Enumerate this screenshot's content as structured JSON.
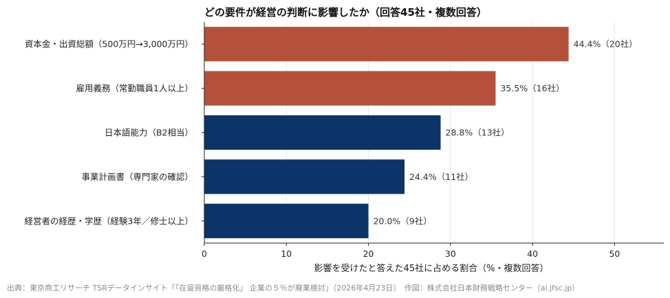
{
  "chart_data": {
    "type": "bar",
    "orientation": "horizontal",
    "title": "どの要件が経営の判断に影響したか（回答45社・複数回答）",
    "xlabel": "影響を受けたと答えた45社に占める割合（%・複数回答）",
    "xlim": [
      0,
      56
    ],
    "xticks": [
      "0",
      "10",
      "20",
      "30",
      "40",
      "50"
    ],
    "grid": "vertical",
    "categories": [
      "資本金・出資総額（500万円→3,000万円）",
      "雇用義務（常勤職員1人以上）",
      "日本語能力（B2相当）",
      "事業計画書（専門家の確認）",
      "経営者の経歴・学歴（経験3年／修士以上）"
    ],
    "values": [
      44.4,
      35.5,
      28.8,
      24.4,
      20.0
    ],
    "data_labels": [
      "44.4%（20社）",
      "35.5%（16社）",
      "28.8%（13社）",
      "24.4%（11社）",
      "20.0%（9社）"
    ],
    "colors": [
      "#b5513a",
      "#b5513a",
      "#0d3468",
      "#0d3468",
      "#0d3468"
    ]
  },
  "source": "出典：東京商工リサーチ TSRデータインサイト「「在留資格の厳格化」 企業の５％が廃業検討」（2026年4月23日）　作図：株式会社日本財務戦略センター（ai.jfsc.jp）"
}
